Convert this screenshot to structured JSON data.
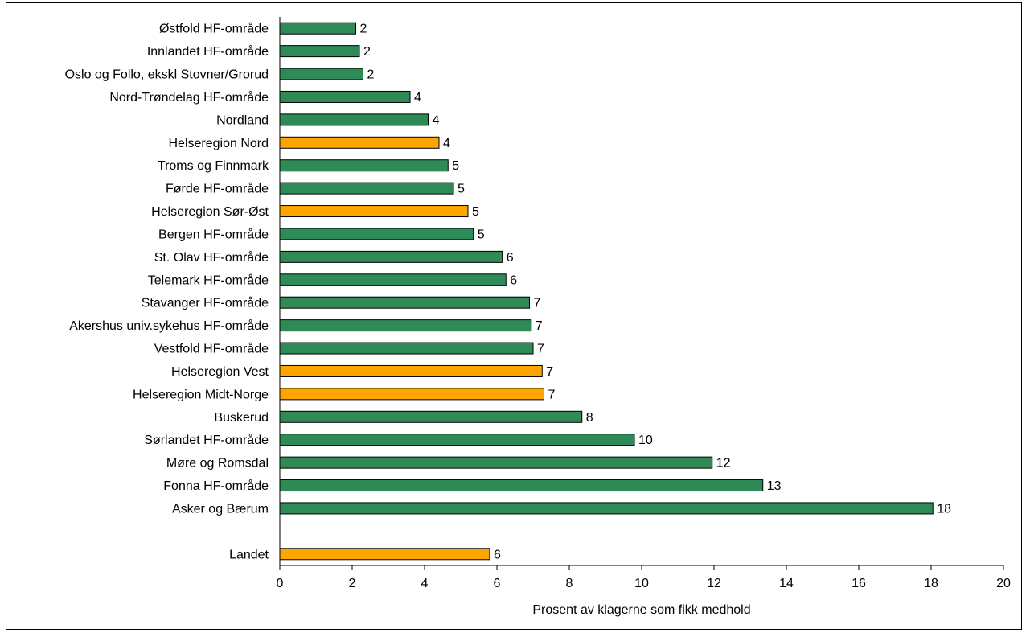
{
  "chart_data": {
    "type": "bar",
    "orientation": "horizontal",
    "xlabel": "Prosent av klagerne som fikk medhold",
    "xlim": [
      0,
      20
    ],
    "xticks": [
      "0",
      "2",
      "4",
      "6",
      "8",
      "10",
      "12",
      "14",
      "16",
      "18",
      "20"
    ],
    "grid": false,
    "legend": "none",
    "colors": {
      "hf": "#2e8b57",
      "region": "#ffa500",
      "edge": "#000000"
    },
    "categories": [
      "Østfold HF-område",
      "Innlandet HF-område",
      "Oslo og Follo, ekskl Stovner/Grorud",
      "Nord-Trøndelag HF-område",
      "Nordland",
      "Helseregion Nord",
      "Troms og Finnmark",
      "Førde HF-område",
      "Helseregion Sør-Øst",
      "Bergen HF-område",
      "St. Olav HF-område",
      "Telemark HF-område",
      "Stavanger HF-område",
      "Akershus univ.sykehus HF-område",
      "Vestfold HF-område",
      "Helseregion Vest",
      "Helseregion Midt-Norge",
      "Buskerud",
      "Sørlandet HF-område",
      "Møre og Romsdal",
      "Fonna HF-område",
      "Asker og Bærum",
      "",
      "Landet"
    ],
    "values": [
      2.1,
      2.2,
      2.3,
      3.6,
      4.1,
      4.4,
      4.65,
      4.8,
      5.2,
      5.35,
      6.15,
      6.25,
      6.9,
      6.95,
      7.0,
      7.25,
      7.3,
      8.35,
      9.8,
      11.95,
      13.35,
      18.05,
      null,
      5.8
    ],
    "data_labels": [
      "2",
      "2",
      "2",
      "4",
      "4",
      "4",
      "5",
      "5",
      "5",
      "5",
      "6",
      "6",
      "7",
      "7",
      "7",
      "7",
      "7",
      "8",
      "10",
      "12",
      "13",
      "18",
      "",
      "6"
    ],
    "bar_type": [
      "hf",
      "hf",
      "hf",
      "hf",
      "hf",
      "region",
      "hf",
      "hf",
      "region",
      "hf",
      "hf",
      "hf",
      "hf",
      "hf",
      "hf",
      "region",
      "region",
      "hf",
      "hf",
      "hf",
      "hf",
      "hf",
      "",
      "region"
    ]
  }
}
